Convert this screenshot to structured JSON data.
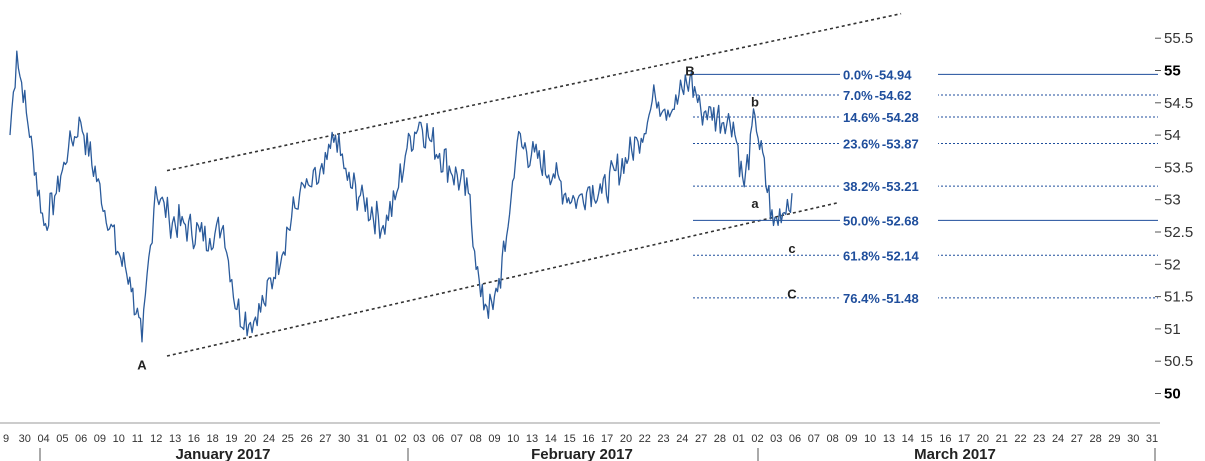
{
  "chart_data": {
    "type": "line",
    "title": "",
    "xlabel": "",
    "ylabel": "",
    "ylim": [
      49.95,
      55.7
    ],
    "y_ticks": [
      "50",
      "50.5",
      "51",
      "51.5",
      "52",
      "52.5",
      "53",
      "53.5",
      "54",
      "54.5",
      "55",
      "55.5"
    ],
    "y_ticks_bold": [
      "50",
      "55"
    ],
    "x_ticks": [
      "9",
      "30",
      "04",
      "05",
      "06",
      "09",
      "10",
      "11",
      "12",
      "13",
      "16",
      "18",
      "19",
      "20",
      "24",
      "25",
      "26",
      "27",
      "30",
      "31",
      "01",
      "02",
      "03",
      "06",
      "07",
      "08",
      "09",
      "10",
      "13",
      "14",
      "15",
      "16",
      "17",
      "20",
      "22",
      "23",
      "24",
      "27",
      "28",
      "01",
      "02",
      "03",
      "06",
      "07",
      "08",
      "09",
      "10",
      "13",
      "14",
      "15",
      "16",
      "17",
      "20",
      "21",
      "22",
      "23",
      "24",
      "27",
      "28",
      "29",
      "30",
      "31"
    ],
    "months": [
      "January 2017",
      "February 2017",
      "March 2017"
    ],
    "series": [
      {
        "color": "#2b5b9b",
        "x": [
          "2016-12-29",
          "2016-12-30",
          "2017-01-03",
          "2017-01-04",
          "2017-01-05",
          "2017-01-06",
          "2017-01-09",
          "2017-01-10",
          "2017-01-11",
          "2017-01-12",
          "2017-01-13",
          "2017-01-16",
          "2017-01-17",
          "2017-01-18",
          "2017-01-19",
          "2017-01-20",
          "2017-01-23",
          "2017-01-24",
          "2017-01-25",
          "2017-01-26",
          "2017-01-27",
          "2017-01-30",
          "2017-01-31",
          "2017-02-01",
          "2017-02-02",
          "2017-02-03",
          "2017-02-06",
          "2017-02-07",
          "2017-02-08",
          "2017-02-09",
          "2017-02-10",
          "2017-02-13",
          "2017-02-14",
          "2017-02-15",
          "2017-02-16",
          "2017-02-17",
          "2017-02-20",
          "2017-02-21",
          "2017-02-22",
          "2017-02-23",
          "2017-02-24",
          "2017-02-27",
          "2017-02-28",
          "2017-03-01",
          "2017-03-02",
          "2017-03-03"
        ],
        "y": [
          54.0,
          55.3,
          52.6,
          53.1,
          53.8,
          54.2,
          52.2,
          51.8,
          50.8,
          53.2,
          52.7,
          52.4,
          52.6,
          51.3,
          51.1,
          51.4,
          53.1,
          53.2,
          53.4,
          54.0,
          53.3,
          52.6,
          53.0,
          53.8,
          54.2,
          53.9,
          53.1,
          51.5,
          51.3,
          52.2,
          53.9,
          53.4,
          53.1,
          53.0,
          53.2,
          53.1,
          53.9,
          54.6,
          54.4,
          54.9,
          54.4,
          54.2,
          53.2,
          54.3,
          52.6,
          53.1
        ]
      }
    ],
    "trend_lines": [
      {
        "style": "dotted",
        "x": [
          "2017-01-11",
          "2017-03-08"
        ],
        "y": [
          53.45,
          55.88
        ]
      },
      {
        "style": "dotted",
        "x": [
          "2017-01-11",
          "2017-03-03"
        ],
        "y": [
          50.58,
          52.95
        ]
      }
    ],
    "fibonacci": {
      "color": "#1f4e9c",
      "levels": [
        {
          "label": "0.0%",
          "value": "54.94",
          "y": 54.94,
          "style": "solid"
        },
        {
          "label": "7.0%",
          "value": "54.62",
          "y": 54.62,
          "style": "dashed"
        },
        {
          "label": "14.6%",
          "value": "54.28",
          "y": 54.28,
          "style": "dashed"
        },
        {
          "label": "23.6%",
          "value": "53.87",
          "y": 53.87,
          "style": "dashed"
        },
        {
          "label": "38.2%",
          "value": "53.21",
          "y": 53.21,
          "style": "dashed"
        },
        {
          "label": "50.0%",
          "value": "52.68",
          "y": 52.68,
          "style": "solid"
        },
        {
          "label": "61.8%",
          "value": "52.14",
          "y": 52.14,
          "style": "dashed"
        },
        {
          "label": "76.4%",
          "value": "51.48",
          "y": 51.48,
          "style": "dashed"
        }
      ]
    },
    "annotations": [
      {
        "text": "A",
        "x": "2017-01-11",
        "y": 50.45
      },
      {
        "text": "B",
        "x": "2017-02-23",
        "y": 55.0
      },
      {
        "text": "a",
        "x": "2017-03-01",
        "y": 52.95
      },
      {
        "text": "b",
        "x": "2017-03-01",
        "y": 54.52
      },
      {
        "text": "c",
        "x": "2017-03-03",
        "y": 52.25
      },
      {
        "text": "C",
        "x": "2017-03-03",
        "y": 51.55
      }
    ]
  }
}
